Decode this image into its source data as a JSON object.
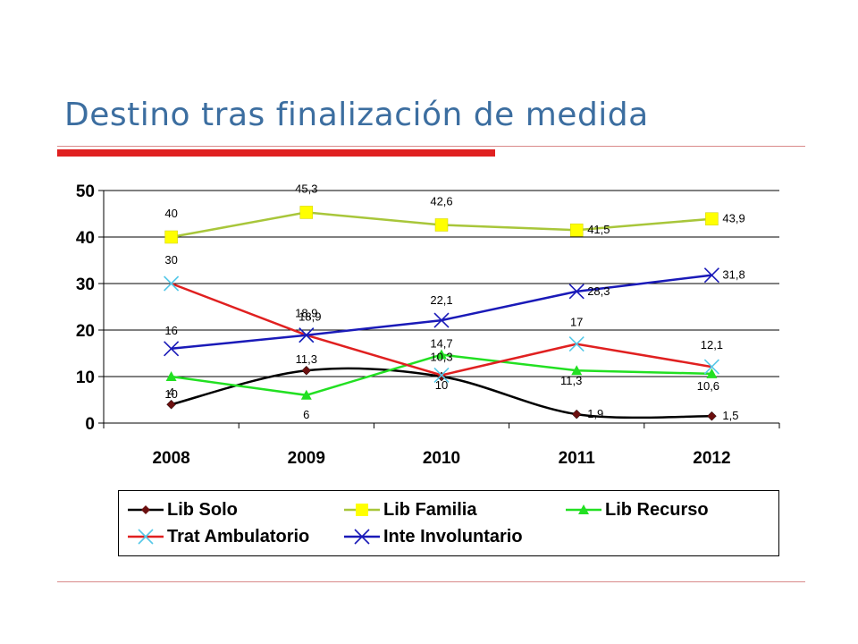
{
  "title": "Destino tras finalización de medida",
  "colors": {
    "title": "#3c6ea0",
    "accent_rule": "#e02020"
  },
  "chart_data": {
    "type": "line",
    "categories": [
      "2008",
      "2009",
      "2010",
      "2011",
      "2012"
    ],
    "ylim": [
      0,
      50
    ],
    "yticks": [
      "0",
      "10",
      "20",
      "30",
      "40",
      "50"
    ],
    "grid": true,
    "legend_position": "bottom",
    "series": [
      {
        "name": "Lib Solo",
        "color": "#000000",
        "line_color": "#000000",
        "marker": "diamond",
        "marker_color": "#6b0f0f",
        "values": [
          4,
          11.3,
          10,
          1.9,
          1.5
        ],
        "labels": [
          "4",
          "11,3",
          "10",
          "1,9",
          "1,5"
        ]
      },
      {
        "name": "Lib Familia",
        "color": "#a8c63a",
        "line_color": "#a8c63a",
        "marker": "square",
        "marker_color": "#ffff00",
        "values": [
          40,
          45.3,
          42.6,
          41.5,
          43.9
        ],
        "labels": [
          "40",
          "45,3",
          "42,6",
          "41,5",
          "43,9"
        ]
      },
      {
        "name": "Lib Recurso",
        "color": "#22e022",
        "line_color": "#22e022",
        "marker": "triangle",
        "marker_color": "#22e022",
        "values": [
          10,
          6,
          14.7,
          11.3,
          10.6
        ],
        "labels": [
          "10",
          "6",
          "14,7",
          "11,3",
          "10,6"
        ]
      },
      {
        "name": "Trat Ambulatorio",
        "color": "#e02020",
        "line_color": "#e02020",
        "marker": "x",
        "marker_color": "#55c8e8",
        "values": [
          30,
          18.9,
          10.3,
          17,
          12.1
        ],
        "labels": [
          "30",
          "18,9",
          "10,3",
          "17",
          "12,1"
        ]
      },
      {
        "name": "Inte Involuntario",
        "color": "#1a1ab8",
        "line_color": "#1a1ab8",
        "marker": "x",
        "marker_color": "#1a1ab8",
        "values": [
          16,
          18.9,
          22.1,
          28.3,
          31.8
        ],
        "labels": [
          "16",
          "18,9",
          "22,1",
          "28,3",
          "31,8"
        ]
      }
    ]
  }
}
